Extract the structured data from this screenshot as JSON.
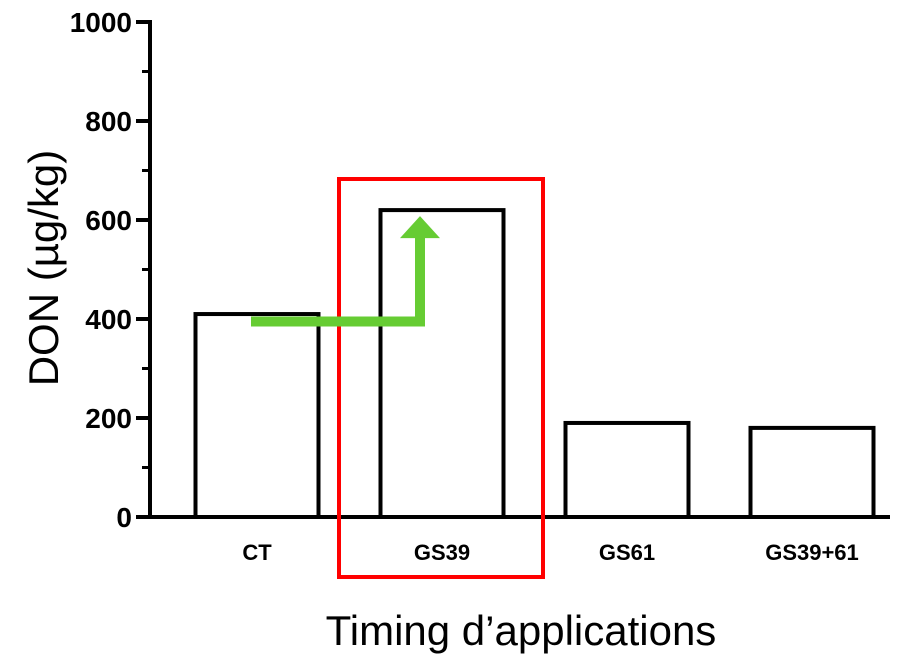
{
  "chart_data": {
    "type": "bar",
    "title": "",
    "xlabel": "Timing d’applications",
    "ylabel": "DON (µg/kg)",
    "ylim": [
      0,
      1000
    ],
    "yticks_major": [
      0,
      200,
      400,
      600,
      800,
      1000
    ],
    "yticks_minor_step": 100,
    "grid": false,
    "legend": "none",
    "categories": [
      "CT",
      "GS39",
      "GS61",
      "GS39+61"
    ],
    "values": [
      410,
      620,
      190,
      180
    ],
    "bar_fill": "#ffffff",
    "bar_stroke": "#000000",
    "annotations": {
      "highlight_box": {
        "category": "GS39",
        "color": "#ff0000"
      },
      "arrow": {
        "from_category": "CT",
        "from_value": 395,
        "to_category": "GS39",
        "to_value": 620,
        "color": "#66cc33"
      }
    }
  }
}
